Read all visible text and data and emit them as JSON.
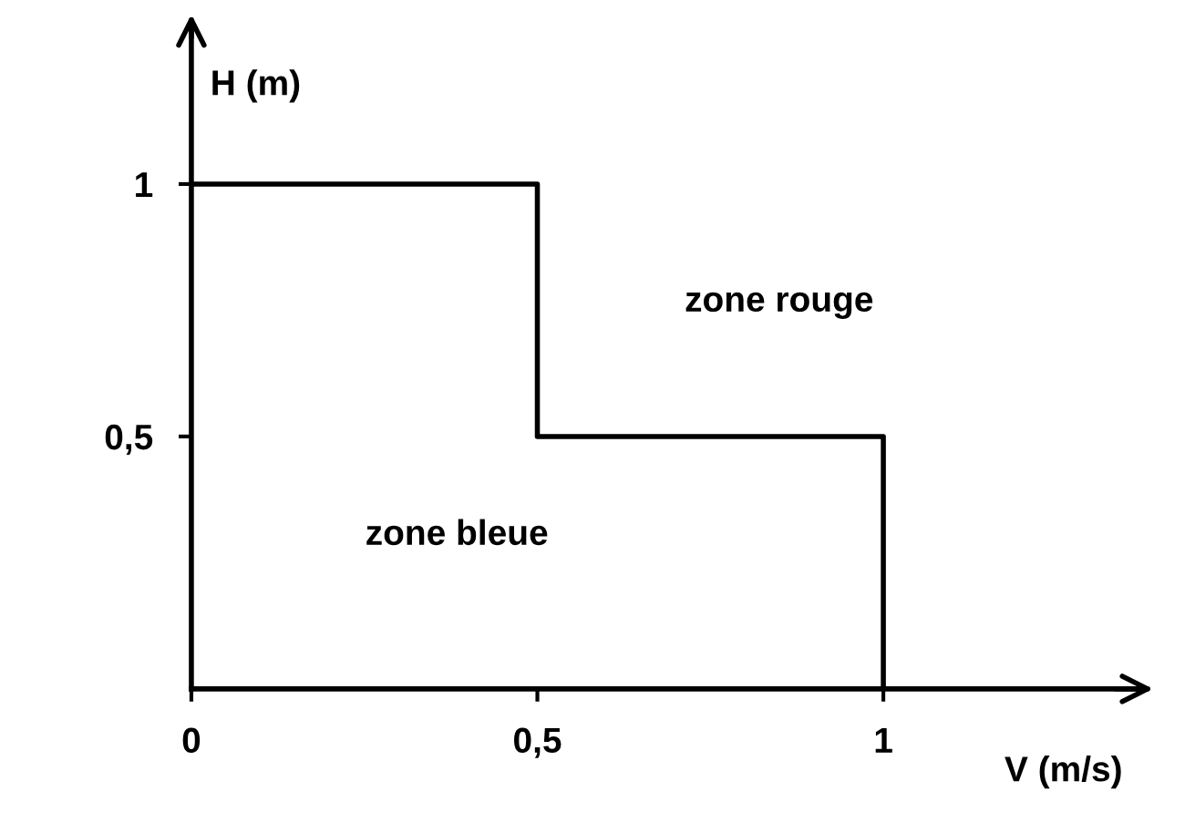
{
  "chart_data": {
    "type": "line",
    "xlabel": "V (m/s)",
    "ylabel": "H (m)",
    "series": [
      {
        "color": "#000000",
        "x": [
          0,
          0.5,
          0.5,
          1,
          1
        ],
        "values": [
          1,
          1,
          0.5,
          0.5,
          0
        ]
      }
    ],
    "xlim": [
      0,
      1.37
    ],
    "ylim": [
      0,
      1.32
    ],
    "xticks": [
      0,
      {
        "value": 0.5,
        "label": "0,5"
      },
      1
    ],
    "yticks": [
      {
        "value": 0.5,
        "label": "0,5"
      },
      1
    ],
    "annotations": [
      "zone rouge",
      "zone bleue"
    ],
    "grid": false,
    "legend": false,
    "marker": "none",
    "line_style": "solid"
  }
}
